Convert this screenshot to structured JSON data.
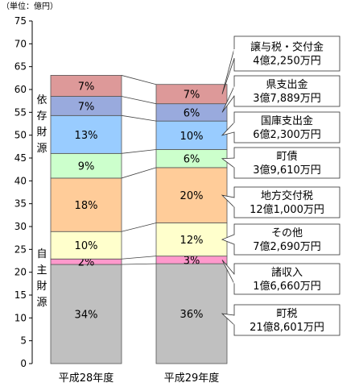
{
  "chart_data": {
    "type": "bar",
    "unit_label": "（単位：億円）",
    "ylim": [
      0,
      75
    ],
    "y_ticks": [
      0,
      5,
      10,
      15,
      20,
      25,
      30,
      35,
      40,
      45,
      50,
      55,
      60,
      65,
      70,
      75
    ],
    "categories": [
      "平成28年度",
      "平成29年度"
    ],
    "series": [
      {
        "name": "町税",
        "color": "#c0c0c0",
        "values": [
          21.7,
          21.86
        ],
        "labels": [
          "34%",
          "36%"
        ]
      },
      {
        "name": "諸収入",
        "color": "#ff99cc",
        "values": [
          1.2,
          1.67
        ],
        "labels": [
          "2%",
          "3%"
        ]
      },
      {
        "name": "その他",
        "color": "#ffffcc",
        "values": [
          6.0,
          7.27
        ],
        "labels": [
          "10%",
          "12%"
        ]
      },
      {
        "name": "地方交付税",
        "color": "#ffcc99",
        "values": [
          11.7,
          12.1
        ],
        "labels": [
          "18%",
          "20%"
        ]
      },
      {
        "name": "町債",
        "color": "#ccffcc",
        "values": [
          5.4,
          3.96
        ],
        "labels": [
          "9%",
          "6%"
        ]
      },
      {
        "name": "国庫支出金",
        "color": "#99ccff",
        "values": [
          8.3,
          6.23
        ],
        "labels": [
          "13%",
          "10%"
        ]
      },
      {
        "name": "県支出金",
        "color": "#99aadd",
        "values": [
          4.2,
          3.79
        ],
        "labels": [
          "7%",
          "6%"
        ]
      },
      {
        "name": "譲与税・交付金",
        "color": "#dd9999",
        "values": [
          4.6,
          4.23
        ],
        "labels": [
          "7%",
          "7%"
        ]
      }
    ],
    "groups": [
      {
        "label": "依存財源",
        "chars": [
          "依",
          "存",
          "財",
          "源"
        ]
      },
      {
        "label": "自主財源",
        "chars": [
          "自",
          "主",
          "財",
          "源"
        ]
      }
    ],
    "callouts": [
      {
        "line1": "譲与税・交付金",
        "line2": "4億2,250万円"
      },
      {
        "line1": "県支出金",
        "line2": "3億7,889万円"
      },
      {
        "line1": "国庫支出金",
        "line2": "6億2,300万円"
      },
      {
        "line1": "町債",
        "line2": "3億9,610万円"
      },
      {
        "line1": "地方交付税",
        "line2": "12億1,000万円"
      },
      {
        "line1": "その他",
        "line2": "7億2,690万円"
      },
      {
        "line1": "諸収入",
        "line2": "1億6,660万円"
      },
      {
        "line1": "町税",
        "line2": "21億8,601万円"
      }
    ]
  }
}
